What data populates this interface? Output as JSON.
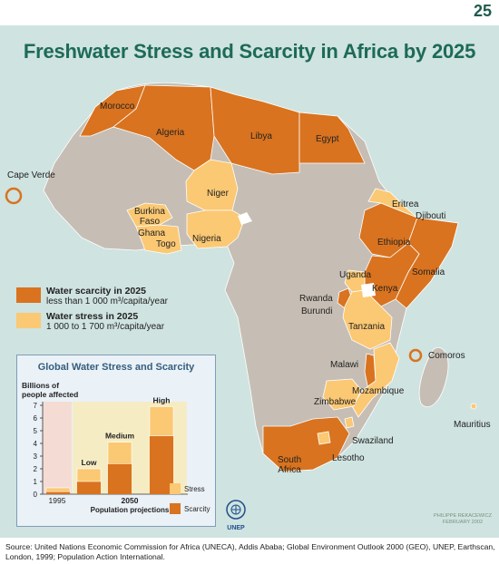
{
  "page_number": "25",
  "title": "Freshwater Stress and Scarcity in Africa by 2025",
  "colors": {
    "scarcity": "#d9731f",
    "stress": "#fbc873",
    "other_land": "#c6beb4",
    "sea": "#cfe3e0",
    "lake": "#ffffff"
  },
  "map_labels": {
    "morocco": "Morocco",
    "algeria": "Algeria",
    "libya": "Libya",
    "egypt": "Egypt",
    "cape_verde": "Cape Verde",
    "niger": "Niger",
    "burkina_faso": "Burkina\nFaso",
    "ghana": "Ghana",
    "togo": "Togo",
    "nigeria": "Nigeria",
    "eritrea": "Eritrea",
    "djibouti": "Djibouti",
    "ethiopia": "Ethiopia",
    "somalia": "Somalia",
    "uganda": "Uganda",
    "kenya": "Kenya",
    "rwanda": "Rwanda",
    "burundi": "Burundi",
    "tanzania": "Tanzania",
    "comoros": "Comoros",
    "malawi": "Malawi",
    "mozambique": "Mozambique",
    "zimbabwe": "Zimbabwe",
    "mauritius": "Mauritius",
    "swaziland": "Swaziland",
    "lesotho": "Lesotho",
    "south_africa": "South\nAfrica"
  },
  "country_status": {
    "scarcity": [
      "Morocco",
      "Algeria",
      "Libya",
      "Egypt",
      "Cape Verde",
      "Ethiopia",
      "Somalia",
      "Kenya",
      "Rwanda",
      "Burundi",
      "Malawi",
      "Comoros",
      "South Africa"
    ],
    "stress": [
      "Niger",
      "Burkina Faso",
      "Ghana",
      "Togo",
      "Nigeria",
      "Eritrea",
      "Djibouti",
      "Uganda",
      "Tanzania",
      "Mozambique",
      "Zimbabwe",
      "Mauritius",
      "Swaziland",
      "Lesotho"
    ]
  },
  "legend": {
    "scarcity_title": "Water scarcity in 2025",
    "scarcity_desc": "less than 1 000 m³/capita/year",
    "stress_title": "Water stress in 2025",
    "stress_desc": "1 000 to 1 700 m³/capita/year"
  },
  "inset": {
    "title": "Global Water Stress and Scarcity",
    "legend_stress": "Stress",
    "legend_scarcity": "Scarcity"
  },
  "chart_data": {
    "type": "bar",
    "title": "Global Water Stress and Scarcity",
    "ylabel": "Billions of\npeople affected",
    "ylim": [
      0,
      7
    ],
    "yticks": [
      "0",
      "1",
      "2",
      "3",
      "4",
      "5",
      "6",
      "7"
    ],
    "bar_labels": [
      "",
      "Low",
      "Medium",
      "High"
    ],
    "x_labels": [
      "1995",
      "2050"
    ],
    "x_sublabel": "Population projections",
    "series": [
      {
        "name": "Scarcity",
        "values": [
          0.2,
          1.0,
          2.4,
          4.6
        ]
      },
      {
        "name": "Stress",
        "values": [
          0.3,
          1.0,
          1.7,
          2.3
        ]
      }
    ]
  },
  "credit": "PHILIPPE REKACEWICZ\nFEBRUARY 2002",
  "logo_text": "UNEP",
  "source": "Source: United Nations Economic Commission for Africa (UNECA), Addis Ababa; Global Environment Outlook 2000 (GEO), UNEP, Earthscan, London, 1999; Population Action International."
}
